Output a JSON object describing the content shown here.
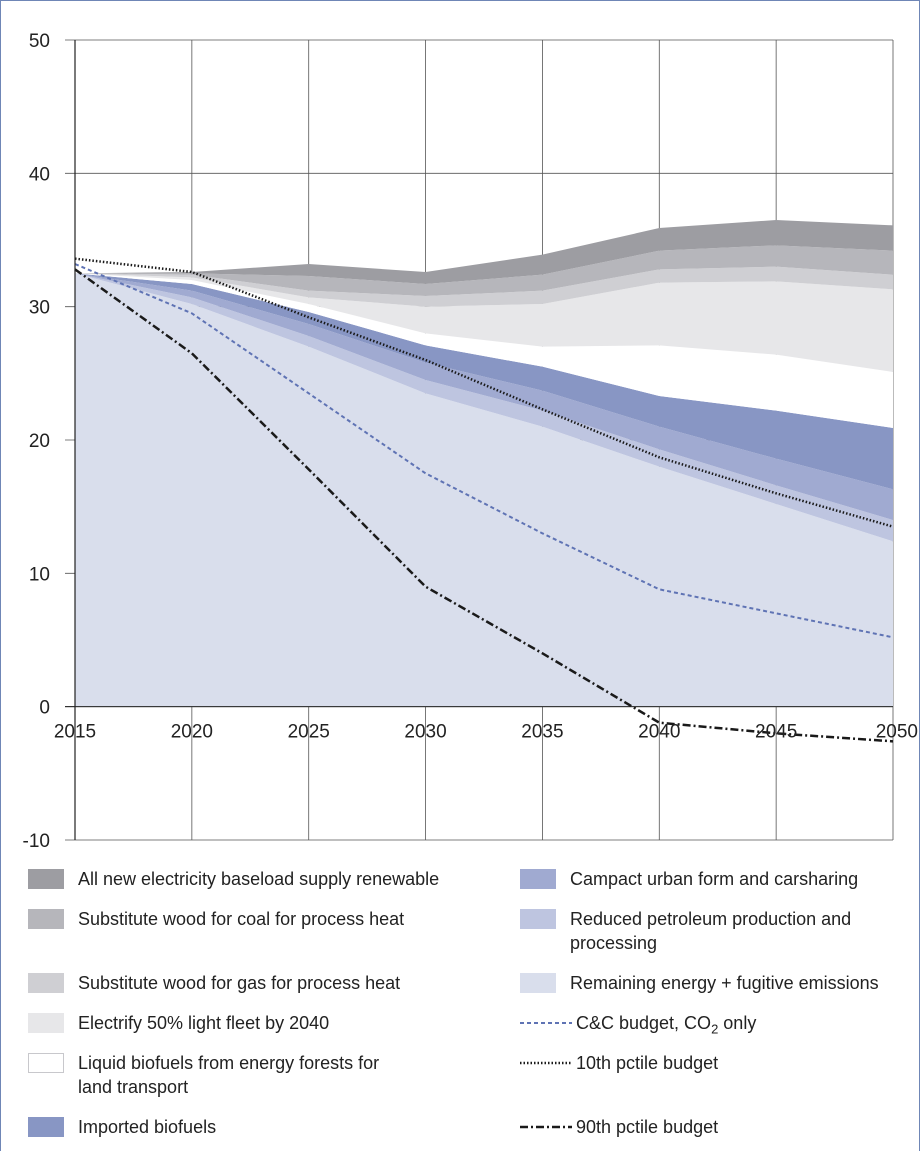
{
  "chart_data": {
    "type": "area",
    "x": [
      2015,
      2020,
      2025,
      2030,
      2035,
      2040,
      2045,
      2050
    ],
    "xticks": [
      "2015",
      "2020",
      "2025",
      "2030",
      "2035",
      "2040",
      "2045",
      "2050"
    ],
    "yticks": [
      "50",
      "40",
      "30",
      "20",
      "10",
      "0",
      "-10"
    ],
    "ylim": [
      -10,
      50
    ],
    "xlim": [
      2015,
      2050
    ],
    "grid": true,
    "stacked": true,
    "series": [
      {
        "name": "Remaining energy + fugitive emissions",
        "color": "#d9deec",
        "values": [
          32.5,
          30.2,
          27.0,
          23.5,
          21.0,
          18.0,
          15.2,
          12.4
        ]
      },
      {
        "name": "Reduced petroleum production and processing",
        "color": "#bec5e0",
        "values": [
          0.0,
          0.5,
          0.8,
          1.0,
          1.2,
          1.3,
          1.4,
          1.6
        ]
      },
      {
        "name": "Campact urban form and carsharing",
        "color": "#a0aad1",
        "values": [
          0.0,
          0.5,
          0.9,
          1.3,
          1.5,
          1.7,
          2.0,
          2.3
        ]
      },
      {
        "name": "Imported biofuels",
        "color": "#8896c4",
        "values": [
          0.0,
          0.5,
          0.9,
          1.3,
          1.8,
          2.3,
          3.6,
          4.6
        ]
      },
      {
        "name": "Liquid biofuels from energy forests for land transport",
        "color": "#ffffff",
        "values": [
          0.0,
          0.3,
          0.6,
          0.9,
          1.5,
          3.8,
          4.2,
          4.2
        ]
      },
      {
        "name": "Electrify 50% light fleet by 2040",
        "color": "#e7e7e9",
        "values": [
          0.0,
          0.2,
          0.5,
          2.0,
          3.2,
          4.7,
          5.5,
          6.2
        ]
      },
      {
        "name": "Substitute wood for gas for process heat",
        "color": "#cfcfd3",
        "values": [
          0.0,
          0.2,
          0.5,
          0.8,
          1.0,
          1.0,
          1.1,
          1.1
        ]
      },
      {
        "name": "Substitute wood for coal for process heat",
        "color": "#b6b6bb",
        "values": [
          0.0,
          0.1,
          1.1,
          0.9,
          1.2,
          1.4,
          1.6,
          1.8
        ]
      },
      {
        "name": "All new electricity baseload supply renewable",
        "color": "#9d9da2",
        "values": [
          0.0,
          0.1,
          0.9,
          0.9,
          1.5,
          1.7,
          1.9,
          1.9
        ]
      }
    ],
    "lines": [
      {
        "name": "C&C budget, CO2 only",
        "name_main": "C&C budget, CO",
        "name_sub": "2",
        "name_tail": " only",
        "style": "dashed",
        "color": "#5f73b4",
        "values": [
          33.2,
          29.5,
          23.5,
          17.5,
          13.0,
          8.8,
          7.0,
          5.2
        ]
      },
      {
        "name": "10th pctile budget",
        "style": "dotted",
        "color": "#1a1a1a",
        "values": [
          33.6,
          32.6,
          29.2,
          26.0,
          22.3,
          18.7,
          16.0,
          13.5
        ]
      },
      {
        "name": "90th pctile budget",
        "style": "dashdot",
        "color": "#1a1a1a",
        "values": [
          32.8,
          26.5,
          17.8,
          9.0,
          4.0,
          -1.2,
          -2.0,
          -2.6
        ]
      }
    ],
    "title": "",
    "xlabel": "",
    "ylabel": ""
  }
}
